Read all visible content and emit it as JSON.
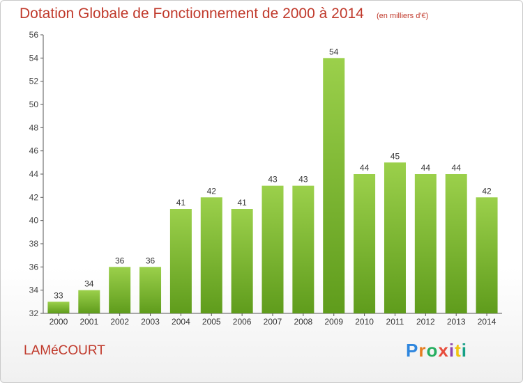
{
  "header": {
    "title": "Dotation Globale de Fonctionnement de 2000 à 2014",
    "subtitle": "(en milliers d'€)"
  },
  "footer": {
    "place": "LAMéCOURT",
    "logo": "Proxiti",
    "logo_colors": [
      "#2e86de",
      "#e67e22",
      "#27ae60",
      "#e74c3c",
      "#8e44ad",
      "#f1c40f",
      "#16a085"
    ]
  },
  "chart_data": {
    "type": "bar",
    "categories": [
      "2000",
      "2001",
      "2002",
      "2003",
      "2004",
      "2005",
      "2006",
      "2007",
      "2008",
      "2009",
      "2010",
      "2011",
      "2012",
      "2013",
      "2014"
    ],
    "values": [
      33,
      34,
      36,
      36,
      41,
      42,
      41,
      43,
      43,
      54,
      44,
      45,
      44,
      44,
      42
    ],
    "ylim": [
      32,
      56
    ],
    "yticks": [
      32,
      34,
      36,
      38,
      40,
      42,
      44,
      46,
      48,
      50,
      52,
      54,
      56
    ],
    "grid": false,
    "bar_color_top": "#9bd04b",
    "bar_color_bottom": "#5f9c1c"
  }
}
